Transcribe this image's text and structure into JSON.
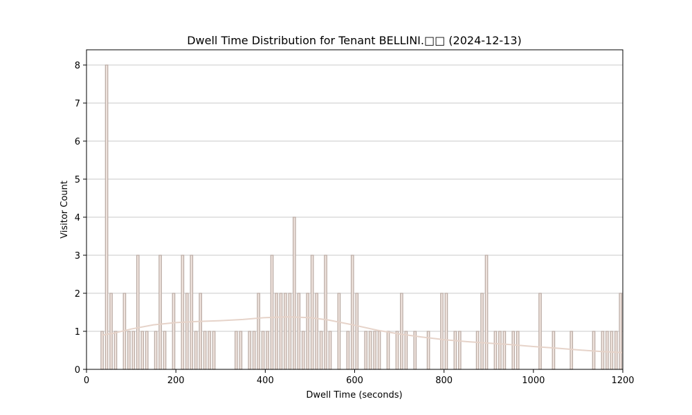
{
  "chart_data": {
    "type": "bar",
    "title": "Dwell Time Distribution for Tenant BELLINI.□□ (2024-12-13)",
    "xlabel": "Dwell Time (seconds)",
    "ylabel": "Visitor Count",
    "xlim": [
      0,
      1200
    ],
    "ylim": [
      0,
      8.4
    ],
    "x_ticks": [
      "0",
      "200",
      "400",
      "600",
      "800",
      "1000",
      "1200"
    ],
    "y_ticks": [
      "0",
      "1",
      "2",
      "3",
      "4",
      "5",
      "6",
      "7",
      "8"
    ],
    "grid": "horizontal",
    "bin_width": 10,
    "bar_color": "#efe3dd",
    "bar_edge_color": "#b9aaa3",
    "kde_color": "#e6d3c9",
    "bins": [
      {
        "x": 35,
        "y": 1
      },
      {
        "x": 45,
        "y": 8
      },
      {
        "x": 55,
        "y": 2
      },
      {
        "x": 65,
        "y": 1
      },
      {
        "x": 85,
        "y": 2
      },
      {
        "x": 95,
        "y": 1
      },
      {
        "x": 105,
        "y": 1
      },
      {
        "x": 115,
        "y": 3
      },
      {
        "x": 125,
        "y": 1
      },
      {
        "x": 135,
        "y": 1
      },
      {
        "x": 155,
        "y": 1
      },
      {
        "x": 165,
        "y": 3
      },
      {
        "x": 175,
        "y": 1
      },
      {
        "x": 195,
        "y": 2
      },
      {
        "x": 215,
        "y": 3
      },
      {
        "x": 225,
        "y": 2
      },
      {
        "x": 235,
        "y": 3
      },
      {
        "x": 245,
        "y": 1
      },
      {
        "x": 255,
        "y": 2
      },
      {
        "x": 265,
        "y": 1
      },
      {
        "x": 275,
        "y": 1
      },
      {
        "x": 285,
        "y": 1
      },
      {
        "x": 335,
        "y": 1
      },
      {
        "x": 345,
        "y": 1
      },
      {
        "x": 365,
        "y": 1
      },
      {
        "x": 375,
        "y": 1
      },
      {
        "x": 385,
        "y": 2
      },
      {
        "x": 395,
        "y": 1
      },
      {
        "x": 405,
        "y": 1
      },
      {
        "x": 415,
        "y": 3
      },
      {
        "x": 425,
        "y": 2
      },
      {
        "x": 435,
        "y": 2
      },
      {
        "x": 445,
        "y": 2
      },
      {
        "x": 455,
        "y": 2
      },
      {
        "x": 465,
        "y": 4
      },
      {
        "x": 475,
        "y": 2
      },
      {
        "x": 485,
        "y": 1
      },
      {
        "x": 495,
        "y": 2
      },
      {
        "x": 505,
        "y": 3
      },
      {
        "x": 515,
        "y": 2
      },
      {
        "x": 525,
        "y": 1
      },
      {
        "x": 535,
        "y": 3
      },
      {
        "x": 545,
        "y": 1
      },
      {
        "x": 565,
        "y": 2
      },
      {
        "x": 585,
        "y": 1
      },
      {
        "x": 595,
        "y": 3
      },
      {
        "x": 605,
        "y": 2
      },
      {
        "x": 625,
        "y": 1
      },
      {
        "x": 635,
        "y": 1
      },
      {
        "x": 645,
        "y": 1
      },
      {
        "x": 655,
        "y": 1
      },
      {
        "x": 675,
        "y": 1
      },
      {
        "x": 695,
        "y": 1
      },
      {
        "x": 705,
        "y": 2
      },
      {
        "x": 715,
        "y": 1
      },
      {
        "x": 735,
        "y": 1
      },
      {
        "x": 765,
        "y": 1
      },
      {
        "x": 795,
        "y": 2
      },
      {
        "x": 805,
        "y": 2
      },
      {
        "x": 825,
        "y": 1
      },
      {
        "x": 835,
        "y": 1
      },
      {
        "x": 875,
        "y": 1
      },
      {
        "x": 885,
        "y": 2
      },
      {
        "x": 895,
        "y": 3
      },
      {
        "x": 915,
        "y": 1
      },
      {
        "x": 925,
        "y": 1
      },
      {
        "x": 935,
        "y": 1
      },
      {
        "x": 955,
        "y": 1
      },
      {
        "x": 965,
        "y": 1
      },
      {
        "x": 1015,
        "y": 2
      },
      {
        "x": 1045,
        "y": 1
      },
      {
        "x": 1085,
        "y": 1
      },
      {
        "x": 1135,
        "y": 1
      },
      {
        "x": 1155,
        "y": 1
      },
      {
        "x": 1165,
        "y": 1
      },
      {
        "x": 1175,
        "y": 1
      },
      {
        "x": 1185,
        "y": 1
      },
      {
        "x": 1195,
        "y": 2
      }
    ],
    "kde": [
      {
        "x": 35,
        "y": 0.9
      },
      {
        "x": 60,
        "y": 0.95
      },
      {
        "x": 100,
        "y": 1.06
      },
      {
        "x": 150,
        "y": 1.17
      },
      {
        "x": 200,
        "y": 1.23
      },
      {
        "x": 250,
        "y": 1.26
      },
      {
        "x": 300,
        "y": 1.28
      },
      {
        "x": 350,
        "y": 1.31
      },
      {
        "x": 400,
        "y": 1.36
      },
      {
        "x": 450,
        "y": 1.38
      },
      {
        "x": 500,
        "y": 1.36
      },
      {
        "x": 540,
        "y": 1.3
      },
      {
        "x": 600,
        "y": 1.16
      },
      {
        "x": 650,
        "y": 1.03
      },
      {
        "x": 700,
        "y": 0.93
      },
      {
        "x": 750,
        "y": 0.85
      },
      {
        "x": 800,
        "y": 0.78
      },
      {
        "x": 850,
        "y": 0.73
      },
      {
        "x": 900,
        "y": 0.69
      },
      {
        "x": 950,
        "y": 0.65
      },
      {
        "x": 1000,
        "y": 0.6
      },
      {
        "x": 1050,
        "y": 0.56
      },
      {
        "x": 1100,
        "y": 0.51
      },
      {
        "x": 1150,
        "y": 0.47
      },
      {
        "x": 1200,
        "y": 0.44
      }
    ]
  }
}
